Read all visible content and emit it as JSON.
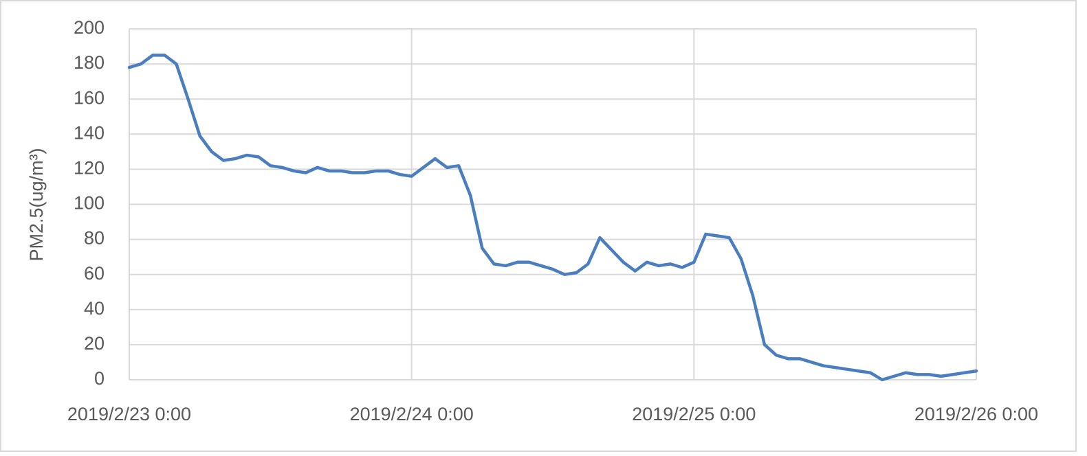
{
  "chart_data": {
    "type": "line",
    "y_label": "PM2.5(ug/m³)",
    "x": [
      0,
      1,
      2,
      3,
      4,
      5,
      6,
      7,
      8,
      9,
      10,
      11,
      12,
      13,
      14,
      15,
      16,
      17,
      18,
      19,
      20,
      21,
      22,
      23,
      24,
      25,
      26,
      27,
      28,
      29,
      30,
      31,
      32,
      33,
      34,
      35,
      36,
      37,
      38,
      39,
      40,
      41,
      42,
      43,
      44,
      45,
      46,
      47,
      48,
      49,
      50,
      51,
      52,
      53,
      54,
      55,
      56,
      57,
      58,
      59,
      60,
      61,
      62,
      63,
      64,
      65,
      66,
      67,
      68,
      69,
      70,
      71,
      72
    ],
    "series": [
      {
        "name": "PM2.5",
        "color": "#4a7ebf",
        "values": [
          178,
          180,
          185,
          185,
          180,
          160,
          139,
          130,
          125,
          126,
          128,
          127,
          122,
          121,
          119,
          118,
          121,
          119,
          119,
          118,
          118,
          119,
          119,
          117,
          116,
          121,
          126,
          121,
          122,
          105,
          75,
          66,
          65,
          67,
          67,
          65,
          63,
          60,
          61,
          66,
          81,
          74,
          67,
          62,
          67,
          65,
          66,
          64,
          67,
          83,
          82,
          81,
          69,
          48,
          20,
          14,
          12,
          12,
          10,
          8,
          7,
          6,
          5,
          4,
          0,
          2,
          4,
          3,
          3,
          2,
          3,
          4,
          5
        ]
      }
    ],
    "xlim": [
      0,
      72
    ],
    "xticks": [
      {
        "value": 0,
        "label": "2019/2/23 0:00"
      },
      {
        "value": 24,
        "label": "2019/2/24 0:00"
      },
      {
        "value": 48,
        "label": "2019/2/25 0:00"
      },
      {
        "value": 72,
        "label": "2019/2/26 0:00"
      }
    ],
    "ylim": [
      0,
      200
    ],
    "yticks": [
      0,
      20,
      40,
      60,
      80,
      100,
      120,
      140,
      160,
      180,
      200
    ],
    "grid": true
  }
}
